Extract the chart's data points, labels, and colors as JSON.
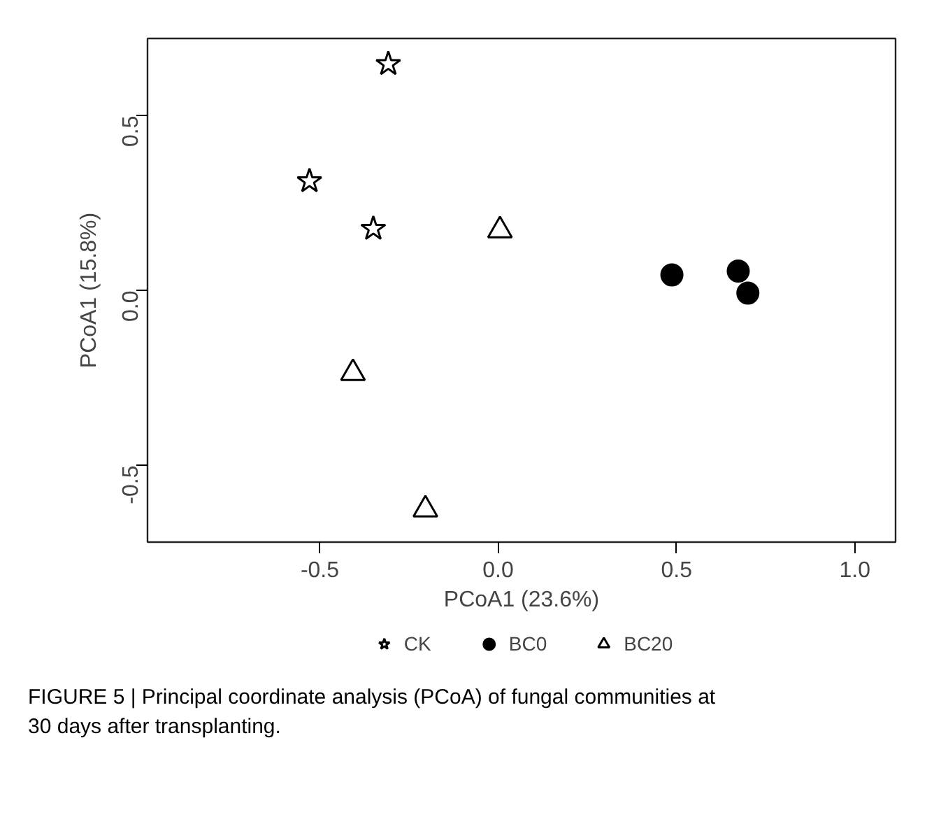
{
  "chart_data": {
    "type": "scatter",
    "xlabel": "PCoA1 (23.6%)",
    "ylabel": "PCoA1 (15.8%)",
    "xlim": [
      -0.983,
      1.114
    ],
    "ylim": [
      -0.719,
      0.721
    ],
    "xticks": [
      -0.5,
      {
        "value": 0,
        "label": "0.0"
      },
      0.5,
      {
        "value": 1,
        "label": "1.0"
      }
    ],
    "yticks": [
      -0.5,
      {
        "value": 0,
        "label": "0.0"
      },
      0.5
    ],
    "grid": false,
    "legend": "bottom",
    "series": [
      {
        "name": "CK",
        "color": "#000000",
        "marker": "star",
        "x": [
          -0.308,
          -0.529,
          -0.35
        ],
        "values": [
          0.648,
          0.313,
          0.177
        ]
      },
      {
        "name": "BC0",
        "color": "#000000",
        "marker": "circle",
        "x": [
          0.487,
          0.673,
          0.7
        ],
        "values": [
          0.045,
          0.056,
          -0.007
        ]
      },
      {
        "name": "BC20",
        "color": "#000000",
        "marker": "triangle",
        "x": [
          0.005,
          -0.407,
          -0.204
        ],
        "values": [
          0.172,
          -0.236,
          -0.626
        ]
      }
    ],
    "annotations": [
      "FIGURE 5 | Principal coordinate analysis (PCoA) of fungal communities at\n30 days after transplanting."
    ]
  }
}
